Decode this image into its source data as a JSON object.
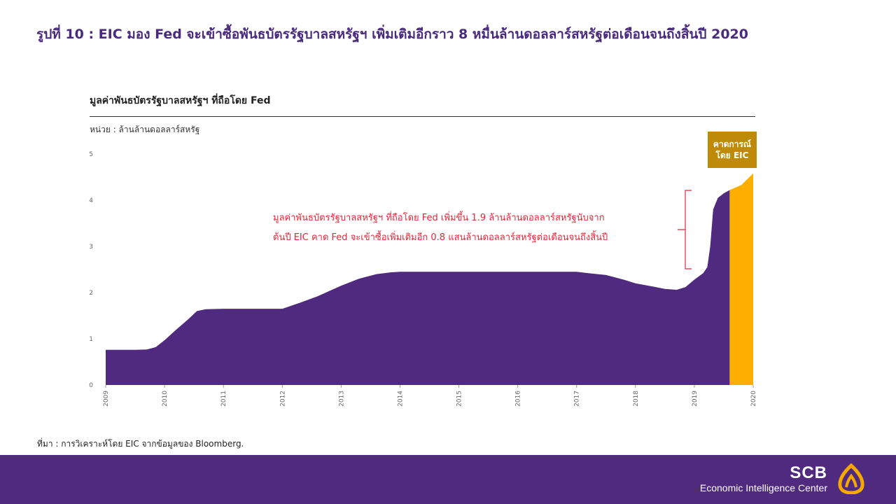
{
  "slide": {
    "title": "รูปที่ 10 : EIC มอง Fed จะเข้าซื้อพันธบัตรรัฐบาลสหรัฐฯ เพิ่มเติมอีกราว 8 หมื่นล้านดอลลาร์สหรัฐต่อเดือนจนถึงสิ้นปี 2020",
    "chart_title": "มูลค่าพันธบัตรรัฐบาลสหรัฐฯ ที่ถือโดย Fed",
    "unit": "หน่วย : ล้านล้านดอลลาร์สหรัฐ",
    "forecast_label_line1": "คาดการณ์",
    "forecast_label_line2": "โดย EIC",
    "annotation_line1": "มูลค่าพันธบัตรรัฐบาลสหรัฐฯ ที่ถือโดย Fed เพิ่มขึ้น 1.9 ล้านล้านดอลลาร์สหรัฐนับจาก",
    "annotation_line2": "ต้นปี EIC คาด Fed จะเข้าซื้อเพิ่มเติมอีก 0.8 แสนล้านดอลลาร์สหรัฐต่อเดือนจนถึงสิ้นปี",
    "source": "ที่มา : การวิเคราะห์โดย EIC จากข้อมูลของ Bloomberg."
  },
  "footer": {
    "brand": "SCB",
    "subtitle": "Economic Intelligence Center",
    "logo_icon": "scb-lotus-icon"
  },
  "colors": {
    "actual": "#4f2a7f",
    "forecast": "#fdae01",
    "forecast_box": "#bf8a07",
    "annotation": "#e0293a",
    "title": "#4a2a7c"
  },
  "chart_data": {
    "type": "area",
    "ylim": [
      0,
      5
    ],
    "xlim": [
      2009,
      2020
    ],
    "y_ticks": [
      "0",
      "1",
      "2",
      "3",
      "4",
      "5"
    ],
    "x_ticks": [
      "2009",
      "2010",
      "2011",
      "2012",
      "2013",
      "2014",
      "2015",
      "2016",
      "2017",
      "2018",
      "2019",
      "2020"
    ],
    "grid": false,
    "series": [
      {
        "points": [
          [
            2009.0,
            0.76
          ],
          [
            2009.5,
            0.76
          ],
          [
            2009.7,
            0.77
          ],
          [
            2009.85,
            0.82
          ],
          [
            2010.0,
            0.97
          ],
          [
            2010.2,
            1.2
          ],
          [
            2010.4,
            1.42
          ],
          [
            2010.55,
            1.6
          ],
          [
            2010.7,
            1.64
          ],
          [
            2011.0,
            1.65
          ],
          [
            2011.5,
            1.65
          ],
          [
            2012.0,
            1.65
          ],
          [
            2012.3,
            1.78
          ],
          [
            2012.6,
            1.92
          ],
          [
            2013.0,
            2.15
          ],
          [
            2013.3,
            2.3
          ],
          [
            2013.6,
            2.4
          ],
          [
            2013.85,
            2.44
          ],
          [
            2014.0,
            2.45
          ],
          [
            2015.0,
            2.45
          ],
          [
            2016.0,
            2.45
          ],
          [
            2017.0,
            2.45
          ],
          [
            2017.2,
            2.42
          ],
          [
            2017.5,
            2.38
          ],
          [
            2017.8,
            2.28
          ],
          [
            2018.0,
            2.2
          ],
          [
            2018.3,
            2.13
          ],
          [
            2018.5,
            2.08
          ],
          [
            2018.7,
            2.06
          ],
          [
            2018.85,
            2.12
          ],
          [
            2019.0,
            2.28
          ],
          [
            2019.15,
            2.42
          ],
          [
            2019.22,
            2.55
          ],
          [
            2019.27,
            3.0
          ],
          [
            2019.32,
            3.8
          ],
          [
            2019.4,
            4.05
          ],
          [
            2019.5,
            4.15
          ],
          [
            2019.6,
            4.22
          ]
        ]
      },
      {
        "points": [
          [
            2019.6,
            4.22
          ],
          [
            2019.8,
            4.33
          ],
          [
            2020.0,
            4.58
          ]
        ]
      }
    ]
  }
}
